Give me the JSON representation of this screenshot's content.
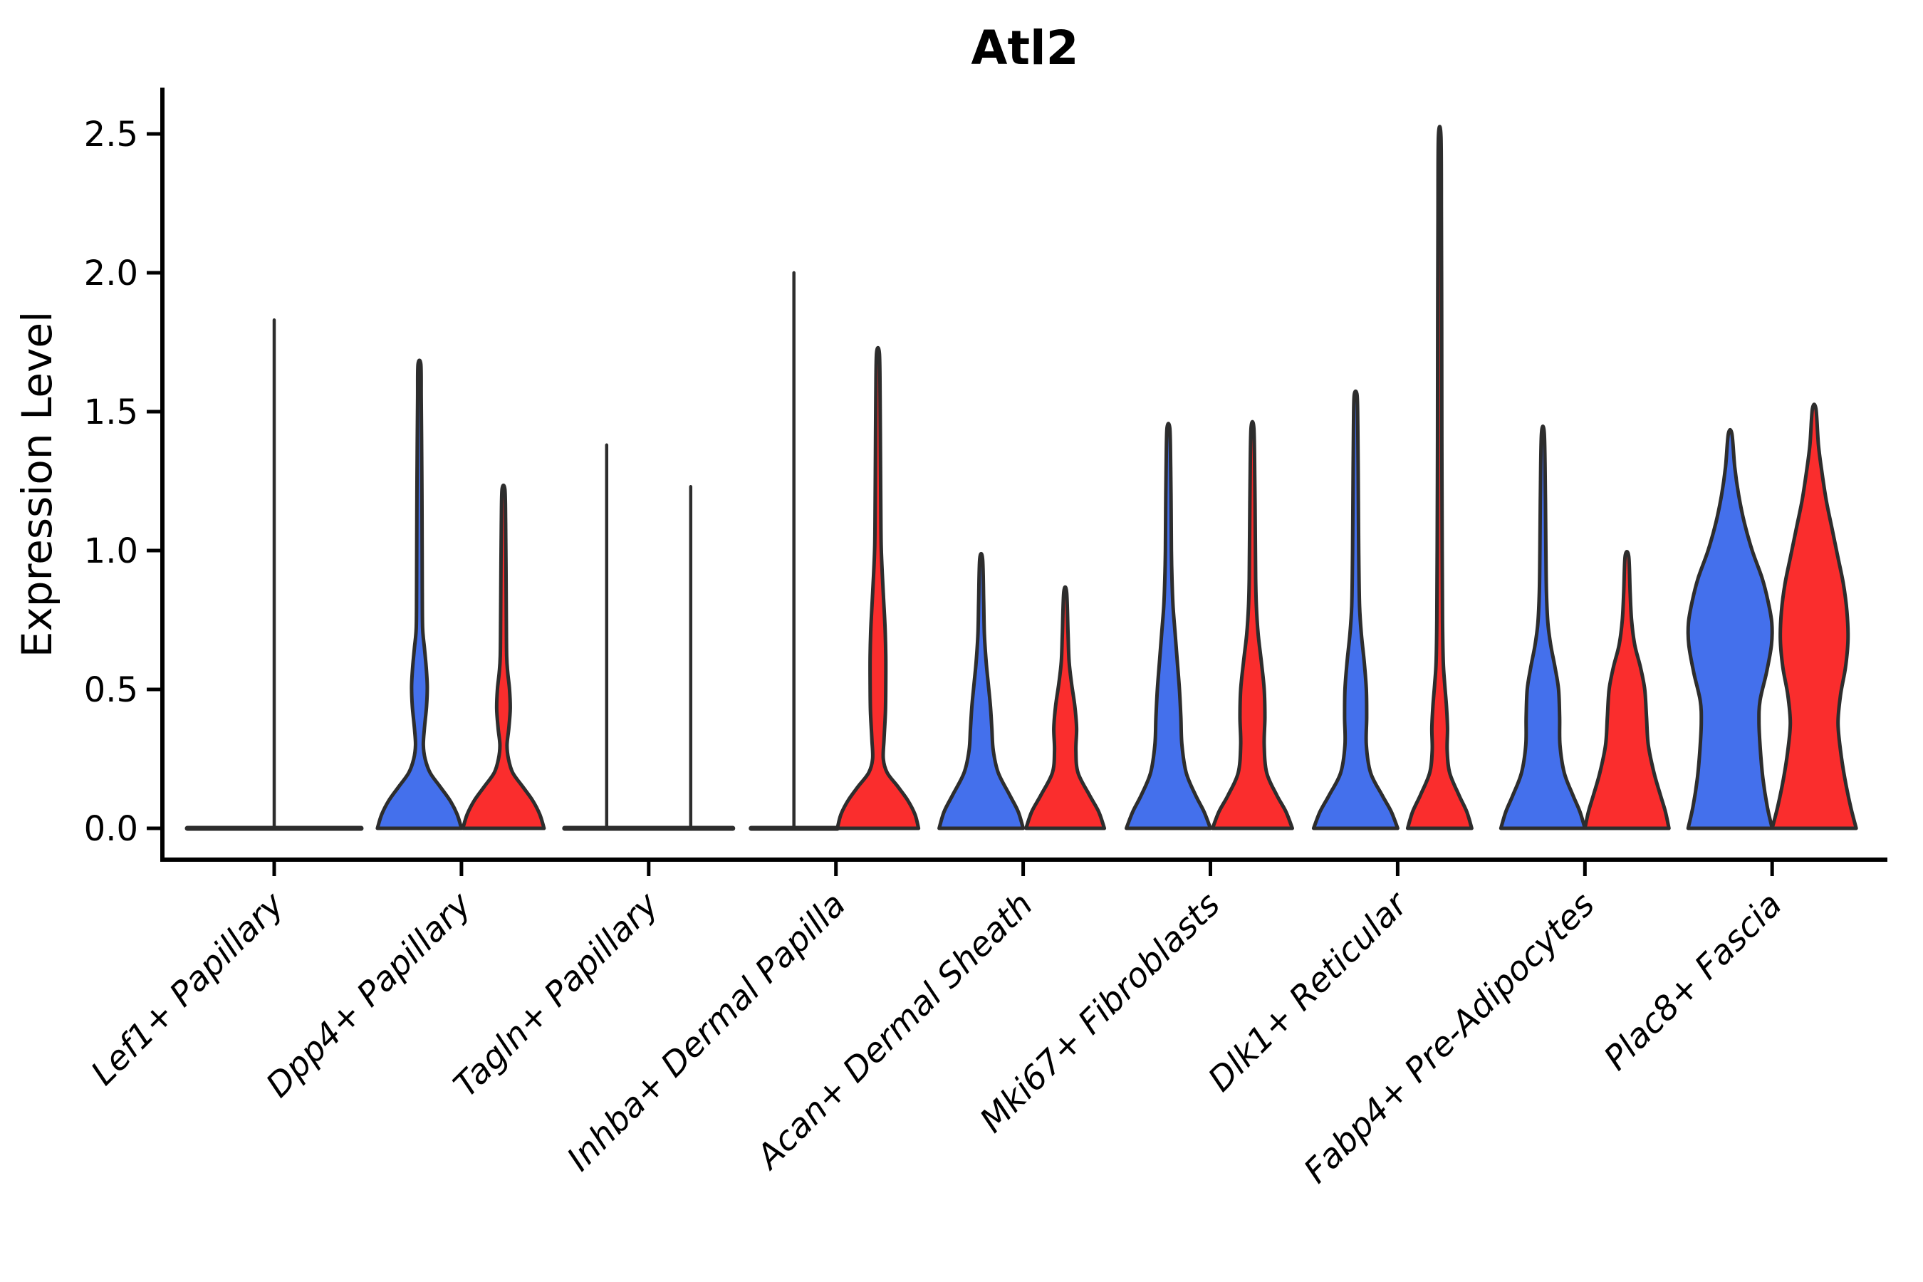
{
  "chart_data": {
    "type": "violin",
    "title": "Atl2",
    "ylabel": "Expression Level",
    "xlabel": "",
    "ylim": [
      -0.11,
      2.67
    ],
    "yticks": [
      "0.0",
      "0.5",
      "1.0",
      "1.5",
      "2.0",
      "2.5"
    ],
    "ytick_values": [
      0.0,
      0.5,
      1.0,
      1.5,
      2.0,
      2.5
    ],
    "grid": false,
    "legend": "none",
    "colors": {
      "blue": "#4470EC",
      "red": "#FA2D2D",
      "outline": "#2d2d2d"
    },
    "categories": [
      "Lef1+ Papillary",
      "Dpp4+ Papillary",
      "Tagln+ Papillary",
      "Inhba+ Dermal Papilla",
      "Acan+ Dermal Sheath",
      "Mki67+ Fibroblasts",
      "Dlk1+ Reticular",
      "Fabp4+ Pre-Adipocytes",
      "Plac8+ Fascia"
    ],
    "series": [
      {
        "name": "blue",
        "max_values": [
          1.83,
          1.67,
          1.38,
          2.0,
          0.97,
          1.44,
          1.56,
          1.42,
          1.42
        ]
      },
      {
        "name": "red",
        "max_values": [
          null,
          1.22,
          1.23,
          1.71,
          0.85,
          1.44,
          2.49,
          0.98,
          1.51
        ]
      }
    ],
    "violins": [
      {
        "category": "Lef1+ Papillary",
        "halves": [
          {
            "side": "blue",
            "type": "flat",
            "flat_span": [
              -122,
              122
            ],
            "spikes": [
              {
                "offset": 0,
                "top": 1.83
              }
            ]
          },
          {
            "side": "red",
            "type": "none"
          }
        ]
      },
      {
        "category": "Dpp4+ Papillary",
        "halves": [
          {
            "side": "blue",
            "type": "violin",
            "offset": -59,
            "max": 1.67,
            "profile": [
              [
                0,
                59
              ],
              [
                0.05,
                53
              ],
              [
                0.1,
                43
              ],
              [
                0.15,
                29
              ],
              [
                0.2,
                15
              ],
              [
                0.25,
                8
              ],
              [
                0.3,
                5.5
              ],
              [
                0.36,
                7
              ],
              [
                0.44,
                10
              ],
              [
                0.51,
                11
              ],
              [
                0.58,
                9.5
              ],
              [
                0.65,
                7
              ],
              [
                0.72,
                4.5
              ],
              [
                0.85,
                4
              ],
              [
                1.0,
                3.8
              ],
              [
                1.2,
                3.5
              ],
              [
                1.4,
                3
              ],
              [
                1.55,
                2.5
              ],
              [
                1.67,
                2
              ]
            ]
          },
          {
            "side": "red",
            "type": "violin",
            "offset": 59,
            "max": 1.22,
            "profile": [
              [
                0,
                57
              ],
              [
                0.05,
                51
              ],
              [
                0.1,
                41
              ],
              [
                0.15,
                27
              ],
              [
                0.2,
                13
              ],
              [
                0.25,
                7
              ],
              [
                0.3,
                5
              ],
              [
                0.36,
                7.5
              ],
              [
                0.43,
                9.5
              ],
              [
                0.5,
                8.5
              ],
              [
                0.56,
                6
              ],
              [
                0.62,
                4.5
              ],
              [
                0.75,
                4
              ],
              [
                0.95,
                3.5
              ],
              [
                1.1,
                3
              ],
              [
                1.22,
                2
              ]
            ]
          }
        ]
      },
      {
        "category": "Tagln+ Papillary",
        "halves": [
          {
            "side": "blue",
            "type": "flat",
            "flat_span": [
              -118,
              118
            ],
            "spikes": [
              {
                "offset": -59,
                "top": 1.38
              },
              {
                "offset": 59,
                "top": 1.23
              }
            ]
          },
          {
            "side": "red",
            "type": "none"
          }
        ]
      },
      {
        "category": "Inhba+ Dermal Papilla",
        "halves": [
          {
            "side": "blue",
            "type": "flat",
            "flat_span": [
              -119,
              2
            ],
            "spikes": [
              {
                "offset": -59,
                "top": 2.0
              }
            ]
          },
          {
            "side": "red",
            "type": "violin",
            "offset": 59,
            "max": 1.71,
            "profile": [
              [
                0,
                57
              ],
              [
                0.05,
                52
              ],
              [
                0.1,
                42
              ],
              [
                0.15,
                28
              ],
              [
                0.2,
                13
              ],
              [
                0.25,
                7.5
              ],
              [
                0.32,
                8.5
              ],
              [
                0.42,
                10.5
              ],
              [
                0.52,
                11
              ],
              [
                0.62,
                11
              ],
              [
                0.72,
                10
              ],
              [
                0.82,
                8
              ],
              [
                0.92,
                6
              ],
              [
                1.02,
                4.5
              ],
              [
                1.15,
                4
              ],
              [
                1.35,
                3.5
              ],
              [
                1.55,
                3
              ],
              [
                1.71,
                2
              ]
            ]
          }
        ]
      },
      {
        "category": "Acan+ Dermal Sheath",
        "halves": [
          {
            "side": "blue",
            "type": "violin",
            "offset": -59,
            "max": 0.97,
            "profile": [
              [
                0,
                59
              ],
              [
                0.06,
                52
              ],
              [
                0.12,
                40
              ],
              [
                0.2,
                24
              ],
              [
                0.28,
                17
              ],
              [
                0.36,
                15
              ],
              [
                0.44,
                13
              ],
              [
                0.52,
                10
              ],
              [
                0.6,
                7
              ],
              [
                0.7,
                4.5
              ],
              [
                0.82,
                3.5
              ],
              [
                0.97,
                2
              ]
            ]
          },
          {
            "side": "red",
            "type": "violin",
            "offset": 59,
            "max": 0.85,
            "profile": [
              [
                0,
                55
              ],
              [
                0.06,
                47
              ],
              [
                0.12,
                34
              ],
              [
                0.2,
                18
              ],
              [
                0.28,
                15
              ],
              [
                0.36,
                16
              ],
              [
                0.44,
                13.5
              ],
              [
                0.52,
                9
              ],
              [
                0.6,
                5.5
              ],
              [
                0.7,
                4
              ],
              [
                0.85,
                2
              ]
            ]
          }
        ]
      },
      {
        "category": "Mki67+ Fibroblasts",
        "halves": [
          {
            "side": "blue",
            "type": "violin",
            "offset": -59,
            "max": 1.44,
            "profile": [
              [
                0,
                59
              ],
              [
                0.06,
                50
              ],
              [
                0.12,
                38
              ],
              [
                0.2,
                25
              ],
              [
                0.3,
                19
              ],
              [
                0.4,
                17.5
              ],
              [
                0.5,
                15.5
              ],
              [
                0.6,
                12.5
              ],
              [
                0.7,
                9.5
              ],
              [
                0.8,
                6.5
              ],
              [
                0.9,
                5
              ],
              [
                1.0,
                4.2
              ],
              [
                1.15,
                3.8
              ],
              [
                1.3,
                3.2
              ],
              [
                1.44,
                2
              ]
            ]
          },
          {
            "side": "red",
            "type": "violin",
            "offset": 59,
            "max": 1.44,
            "profile": [
              [
                0,
                56
              ],
              [
                0.06,
                47
              ],
              [
                0.12,
                34
              ],
              [
                0.2,
                20
              ],
              [
                0.3,
                16.5
              ],
              [
                0.4,
                17.5
              ],
              [
                0.5,
                16.5
              ],
              [
                0.6,
                12.5
              ],
              [
                0.7,
                8
              ],
              [
                0.8,
                5.5
              ],
              [
                0.9,
                4.5
              ],
              [
                1.05,
                4
              ],
              [
                1.25,
                3.3
              ],
              [
                1.44,
                2
              ]
            ]
          }
        ]
      },
      {
        "category": "Dlk1+ Reticular",
        "halves": [
          {
            "side": "blue",
            "type": "violin",
            "offset": -59,
            "max": 1.56,
            "profile": [
              [
                0,
                59
              ],
              [
                0.06,
                50
              ],
              [
                0.12,
                37
              ],
              [
                0.2,
                21
              ],
              [
                0.3,
                15
              ],
              [
                0.4,
                15.5
              ],
              [
                0.5,
                15
              ],
              [
                0.6,
                12
              ],
              [
                0.7,
                8
              ],
              [
                0.8,
                5.5
              ],
              [
                0.95,
                4.5
              ],
              [
                1.1,
                4
              ],
              [
                1.3,
                3.5
              ],
              [
                1.45,
                3
              ],
              [
                1.56,
                2
              ]
            ]
          },
          {
            "side": "red",
            "type": "violin",
            "offset": 59,
            "max": 2.49,
            "profile": [
              [
                0,
                45
              ],
              [
                0.06,
                38
              ],
              [
                0.12,
                27
              ],
              [
                0.2,
                14
              ],
              [
                0.28,
                10.5
              ],
              [
                0.36,
                11
              ],
              [
                0.44,
                9.5
              ],
              [
                0.52,
                7
              ],
              [
                0.6,
                5
              ],
              [
                0.75,
                4
              ],
              [
                1.0,
                3.5
              ],
              [
                1.4,
                3
              ],
              [
                1.8,
                2.8
              ],
              [
                2.2,
                2.4
              ],
              [
                2.49,
                1.8
              ]
            ]
          }
        ]
      },
      {
        "category": "Fabp4+ Pre-Adipocytes",
        "halves": [
          {
            "side": "blue",
            "type": "violin",
            "offset": -59,
            "max": 1.42,
            "profile": [
              [
                0,
                59
              ],
              [
                0.06,
                52
              ],
              [
                0.12,
                42
              ],
              [
                0.2,
                30
              ],
              [
                0.3,
                24
              ],
              [
                0.4,
                23.5
              ],
              [
                0.5,
                22
              ],
              [
                0.58,
                17
              ],
              [
                0.66,
                11
              ],
              [
                0.74,
                7
              ],
              [
                0.85,
                5
              ],
              [
                1.0,
                4.2
              ],
              [
                1.2,
                3.5
              ],
              [
                1.42,
                2
              ]
            ]
          },
          {
            "side": "red",
            "type": "violin",
            "offset": 59,
            "max": 0.98,
            "profile": [
              [
                0,
                59
              ],
              [
                0.06,
                54
              ],
              [
                0.12,
                47
              ],
              [
                0.2,
                38
              ],
              [
                0.3,
                30
              ],
              [
                0.4,
                27.5
              ],
              [
                0.5,
                25
              ],
              [
                0.58,
                19
              ],
              [
                0.66,
                11
              ],
              [
                0.75,
                6.5
              ],
              [
                0.85,
                4.5
              ],
              [
                0.98,
                2.5
              ]
            ]
          }
        ]
      },
      {
        "category": "Plac8+ Fascia",
        "halves": [
          {
            "side": "blue",
            "type": "violin",
            "offset": -59,
            "max": 1.42,
            "profile": [
              [
                0,
                59
              ],
              [
                0.08,
                52
              ],
              [
                0.18,
                46
              ],
              [
                0.28,
                42.5
              ],
              [
                0.38,
                40.5
              ],
              [
                0.46,
                42
              ],
              [
                0.56,
                51
              ],
              [
                0.66,
                58
              ],
              [
                0.74,
                58.5
              ],
              [
                0.82,
                53
              ],
              [
                0.9,
                45
              ],
              [
                1.0,
                31
              ],
              [
                1.1,
                20
              ],
              [
                1.2,
                12
              ],
              [
                1.3,
                6.5
              ],
              [
                1.42,
                2.5
              ]
            ]
          },
          {
            "side": "red",
            "type": "violin",
            "offset": 59,
            "max": 1.51,
            "profile": [
              [
                0,
                59
              ],
              [
                0.08,
                51
              ],
              [
                0.18,
                43
              ],
              [
                0.28,
                37
              ],
              [
                0.38,
                33.5
              ],
              [
                0.48,
                37
              ],
              [
                0.58,
                44
              ],
              [
                0.68,
                47.5
              ],
              [
                0.78,
                46
              ],
              [
                0.88,
                41
              ],
              [
                0.98,
                33
              ],
              [
                1.08,
                25
              ],
              [
                1.18,
                17
              ],
              [
                1.28,
                11
              ],
              [
                1.38,
                6
              ],
              [
                1.51,
                2.5
              ]
            ]
          }
        ]
      }
    ]
  }
}
